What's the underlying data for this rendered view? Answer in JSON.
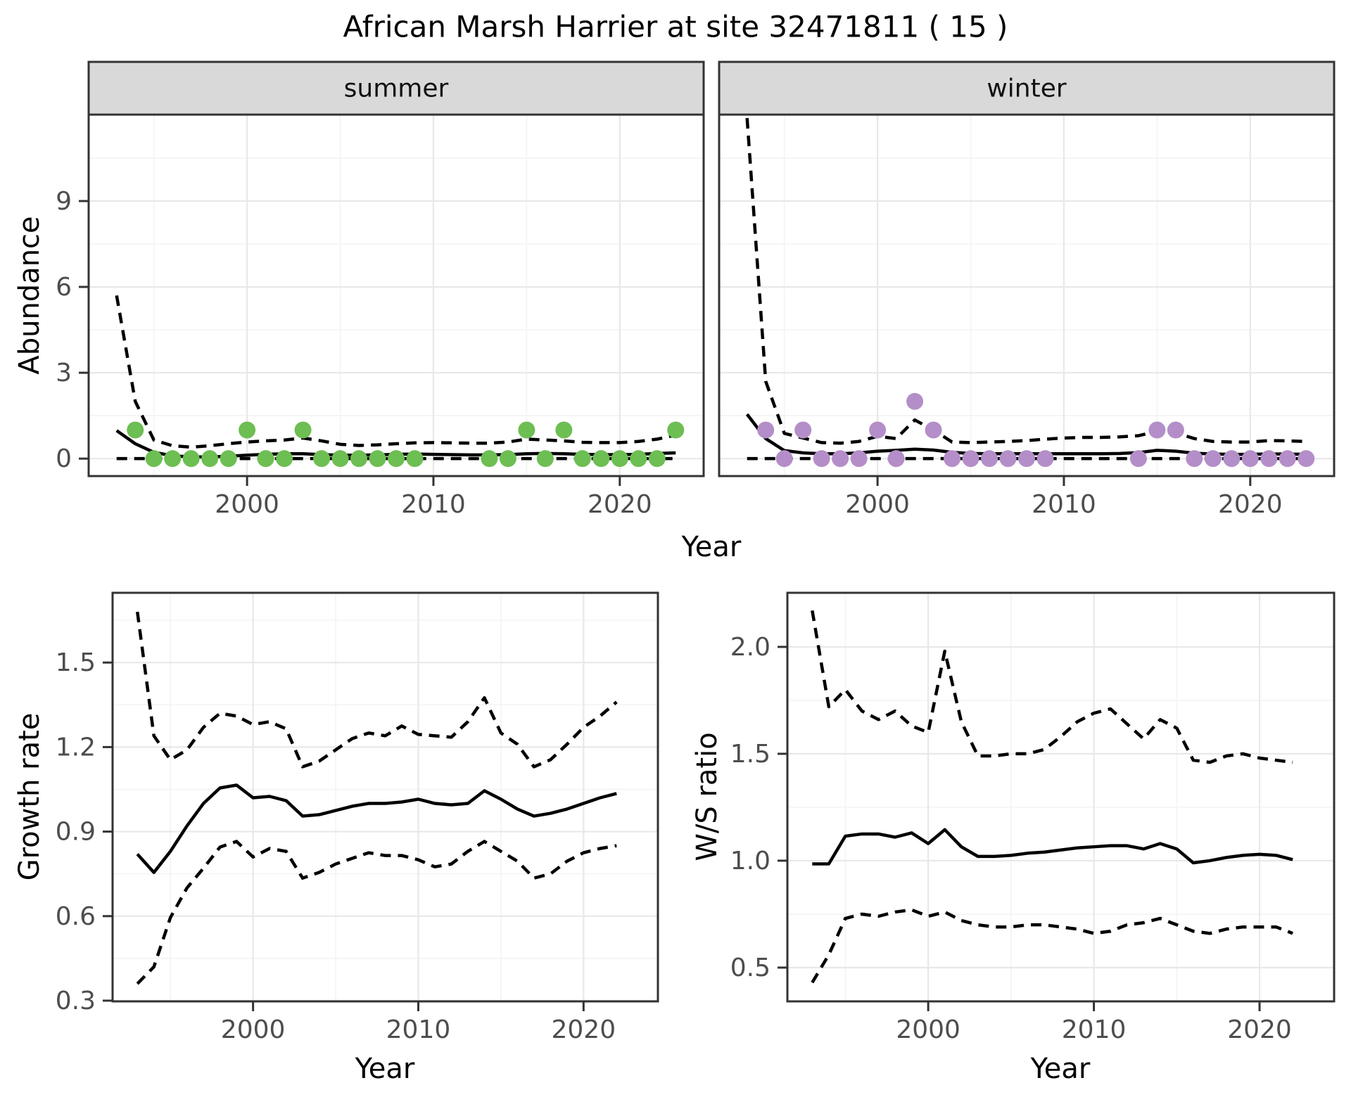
{
  "title": "African Marsh Harrier at site 32471811 ( 15 )",
  "axes": {
    "abundance": "Abundance",
    "growth_rate": "Growth rate",
    "ws_ratio": "W/S ratio",
    "year": "Year"
  },
  "colors": {
    "summer_point": "#6DBE53",
    "winter_point": "#B48EC8",
    "line": "#000000",
    "grid_major": "#E8E8E8",
    "grid_minor": "#F4F4F4",
    "strip_fill": "#D9D9D9",
    "panel_border": "#333333",
    "tick_text": "#4D4D4D"
  },
  "chart_data": [
    {
      "type": "scatter",
      "facet": "summer",
      "xlabel": "Year",
      "ylabel": "Abundance",
      "xlim": [
        1991.5,
        2024.5
      ],
      "ylim": [
        -0.61,
        12.02
      ],
      "x_ticks": [
        2000,
        2010,
        2020
      ],
      "x_tick_labels": [
        "2000",
        "2010",
        "2020"
      ],
      "x_minor": [
        1995,
        2005,
        2015
      ],
      "y_ticks": [
        0,
        3,
        6,
        9
      ],
      "y_tick_labels": [
        "0",
        "3",
        "6",
        "9"
      ],
      "y_minor": [
        1.5,
        4.5,
        7.5,
        10.5
      ],
      "points": {
        "years": [
          1994,
          1995,
          1996,
          1997,
          1998,
          1999,
          2000,
          2001,
          2002,
          2003,
          2004,
          2005,
          2006,
          2007,
          2008,
          2009,
          2013,
          2014,
          2015,
          2016,
          2017,
          2018,
          2019,
          2020,
          2021,
          2022,
          2023
        ],
        "values": [
          1,
          0,
          0,
          0,
          0,
          0,
          1,
          0,
          0,
          1,
          0,
          0,
          0,
          0,
          0,
          0,
          0,
          0,
          1,
          0,
          1,
          0,
          0,
          0,
          0,
          0,
          1
        ]
      },
      "mean": {
        "years": [
          1993,
          1994,
          1995,
          1996,
          1997,
          1998,
          1999,
          2000,
          2001,
          2002,
          2003,
          2004,
          2005,
          2006,
          2007,
          2008,
          2009,
          2010,
          2011,
          2012,
          2013,
          2014,
          2015,
          2016,
          2017,
          2018,
          2019,
          2020,
          2021,
          2022,
          2023
        ],
        "values": [
          0.98,
          0.52,
          0.22,
          0.1,
          0.06,
          0.06,
          0.08,
          0.12,
          0.15,
          0.17,
          0.17,
          0.14,
          0.12,
          0.12,
          0.13,
          0.15,
          0.16,
          0.15,
          0.14,
          0.13,
          0.13,
          0.14,
          0.17,
          0.18,
          0.17,
          0.15,
          0.14,
          0.14,
          0.15,
          0.18,
          0.2
        ]
      },
      "ci_upper": {
        "years": [
          1993,
          1994,
          1995,
          1996,
          1997,
          1998,
          1999,
          2000,
          2001,
          2002,
          2003,
          2004,
          2005,
          2006,
          2007,
          2008,
          2009,
          2010,
          2011,
          2012,
          2013,
          2014,
          2015,
          2016,
          2017,
          2018,
          2019,
          2020,
          2021,
          2022,
          2023
        ],
        "values": [
          5.7,
          2.0,
          0.65,
          0.45,
          0.4,
          0.45,
          0.52,
          0.58,
          0.62,
          0.65,
          0.72,
          0.62,
          0.5,
          0.46,
          0.48,
          0.52,
          0.55,
          0.56,
          0.55,
          0.54,
          0.54,
          0.58,
          0.68,
          0.65,
          0.62,
          0.57,
          0.56,
          0.56,
          0.6,
          0.68,
          0.82
        ]
      },
      "ci_lower": {
        "years": [
          1993,
          2023
        ],
        "values": [
          0,
          0
        ]
      }
    },
    {
      "type": "scatter",
      "facet": "winter",
      "xlabel": "Year",
      "ylabel": "Abundance",
      "xlim": [
        1991.5,
        2024.5
      ],
      "ylim": [
        -0.61,
        12.02
      ],
      "x_ticks": [
        2000,
        2010,
        2020
      ],
      "x_tick_labels": [
        "2000",
        "2010",
        "2020"
      ],
      "x_minor": [
        1995,
        2005,
        2015
      ],
      "y_ticks": [
        0,
        3,
        6,
        9
      ],
      "y_tick_labels": [
        "0",
        "3",
        "6",
        "9"
      ],
      "y_minor": [
        1.5,
        4.5,
        7.5,
        10.5
      ],
      "points": {
        "years": [
          1994,
          1995,
          1996,
          1997,
          1998,
          1999,
          2000,
          2001,
          2002,
          2003,
          2004,
          2005,
          2006,
          2007,
          2008,
          2009,
          2014,
          2015,
          2016,
          2017,
          2018,
          2019,
          2020,
          2021,
          2022,
          2023
        ],
        "values": [
          1,
          0,
          1,
          0,
          0,
          0,
          1,
          0,
          2,
          1,
          0,
          0,
          0,
          0,
          0,
          0,
          0,
          1,
          1,
          0,
          0,
          0,
          0,
          0,
          0,
          0
        ]
      },
      "mean": {
        "years": [
          1993,
          1994,
          1995,
          1996,
          1997,
          1998,
          1999,
          2000,
          2001,
          2002,
          2003,
          2004,
          2005,
          2006,
          2007,
          2008,
          2009,
          2010,
          2011,
          2012,
          2013,
          2014,
          2015,
          2016,
          2017,
          2018,
          2019,
          2020,
          2021,
          2022,
          2023
        ],
        "values": [
          1.55,
          0.7,
          0.28,
          0.2,
          0.17,
          0.17,
          0.2,
          0.26,
          0.29,
          0.33,
          0.3,
          0.22,
          0.18,
          0.17,
          0.17,
          0.17,
          0.17,
          0.17,
          0.17,
          0.17,
          0.18,
          0.21,
          0.29,
          0.26,
          0.19,
          0.16,
          0.15,
          0.15,
          0.16,
          0.16,
          0.15
        ]
      },
      "ci_upper": {
        "years": [
          1993,
          1994,
          1995,
          1996,
          1997,
          1998,
          1999,
          2000,
          2001,
          2002,
          2003,
          2004,
          2005,
          2006,
          2007,
          2008,
          2009,
          2010,
          2011,
          2012,
          2013,
          2014,
          2015,
          2016,
          2017,
          2018,
          2019,
          2020,
          2021,
          2022,
          2023
        ],
        "values": [
          11.9,
          2.7,
          0.88,
          0.72,
          0.56,
          0.54,
          0.6,
          0.78,
          0.7,
          1.35,
          1.0,
          0.58,
          0.56,
          0.58,
          0.6,
          0.63,
          0.68,
          0.72,
          0.74,
          0.74,
          0.76,
          0.8,
          0.95,
          0.9,
          0.7,
          0.6,
          0.58,
          0.58,
          0.63,
          0.62,
          0.6
        ]
      },
      "ci_lower": {
        "years": [
          1993,
          2023
        ],
        "values": [
          0,
          0
        ]
      }
    },
    {
      "type": "line",
      "facet": null,
      "xlabel": "Year",
      "ylabel": "Growth rate",
      "xlim": [
        1991.5,
        2024.5
      ],
      "ylim": [
        0.2975,
        1.7475
      ],
      "x_ticks": [
        2000,
        2010,
        2020
      ],
      "x_tick_labels": [
        "2000",
        "2010",
        "2020"
      ],
      "x_minor": [
        1995,
        2005,
        2015
      ],
      "y_ticks": [
        0.3,
        0.6,
        0.9,
        1.2,
        1.5
      ],
      "y_tick_labels": [
        "0.3",
        "0.6",
        "0.9",
        "1.2",
        "1.5"
      ],
      "y_minor": [
        0.45,
        0.75,
        1.05,
        1.35,
        1.65
      ],
      "points": {
        "years": [],
        "values": []
      },
      "mean": {
        "years": [
          1993,
          1994,
          1995,
          1996,
          1997,
          1998,
          1999,
          2000,
          2001,
          2002,
          2003,
          2004,
          2005,
          2006,
          2007,
          2008,
          2009,
          2010,
          2011,
          2012,
          2013,
          2014,
          2015,
          2016,
          2017,
          2018,
          2019,
          2020,
          2021,
          2022
        ],
        "values": [
          0.82,
          0.755,
          0.83,
          0.92,
          1.0,
          1.055,
          1.065,
          1.02,
          1.025,
          1.01,
          0.955,
          0.96,
          0.975,
          0.99,
          1.0,
          1.0,
          1.005,
          1.015,
          1.0,
          0.995,
          1.0,
          1.045,
          1.015,
          0.98,
          0.955,
          0.965,
          0.98,
          1.0,
          1.02,
          1.035
        ]
      },
      "ci_upper": {
        "years": [
          1993,
          1994,
          1995,
          1996,
          1997,
          1998,
          1999,
          2000,
          2001,
          2002,
          2003,
          2004,
          2005,
          2006,
          2007,
          2008,
          2009,
          2010,
          2011,
          2012,
          2013,
          2014,
          2015,
          2016,
          2017,
          2018,
          2019,
          2020,
          2021,
          2022
        ],
        "values": [
          1.68,
          1.24,
          1.155,
          1.19,
          1.27,
          1.32,
          1.31,
          1.28,
          1.29,
          1.265,
          1.13,
          1.15,
          1.19,
          1.23,
          1.25,
          1.24,
          1.275,
          1.245,
          1.24,
          1.235,
          1.29,
          1.375,
          1.25,
          1.21,
          1.13,
          1.155,
          1.21,
          1.27,
          1.31,
          1.36
        ]
      },
      "ci_lower": {
        "years": [
          1993,
          1994,
          1995,
          1996,
          1997,
          1998,
          1999,
          2000,
          2001,
          2002,
          2003,
          2004,
          2005,
          2006,
          2007,
          2008,
          2009,
          2010,
          2011,
          2012,
          2013,
          2014,
          2015,
          2016,
          2017,
          2018,
          2019,
          2020,
          2021,
          2022
        ],
        "values": [
          0.36,
          0.42,
          0.595,
          0.7,
          0.77,
          0.845,
          0.865,
          0.81,
          0.84,
          0.83,
          0.735,
          0.755,
          0.785,
          0.805,
          0.825,
          0.815,
          0.815,
          0.8,
          0.775,
          0.785,
          0.83,
          0.865,
          0.83,
          0.795,
          0.735,
          0.75,
          0.795,
          0.825,
          0.84,
          0.85
        ]
      }
    },
    {
      "type": "line",
      "facet": null,
      "xlabel": "Year",
      "ylabel": "W/S ratio",
      "xlim": [
        1991.5,
        2024.5
      ],
      "ylim": [
        0.342,
        2.253
      ],
      "x_ticks": [
        2000,
        2010,
        2020
      ],
      "x_tick_labels": [
        "2000",
        "2010",
        "2020"
      ],
      "x_minor": [
        1995,
        2005,
        2015
      ],
      "y_ticks": [
        0.5,
        1.0,
        1.5,
        2.0
      ],
      "y_tick_labels": [
        "0.5",
        "1.0",
        "1.5",
        "2.0"
      ],
      "y_minor": [
        0.75,
        1.25,
        1.75
      ],
      "points": {
        "years": [],
        "values": []
      },
      "mean": {
        "years": [
          1993,
          1994,
          1995,
          1996,
          1997,
          1998,
          1999,
          2000,
          2001,
          2002,
          2003,
          2004,
          2005,
          2006,
          2007,
          2008,
          2009,
          2010,
          2011,
          2012,
          2013,
          2014,
          2015,
          2016,
          2017,
          2018,
          2019,
          2020,
          2021,
          2022
        ],
        "values": [
          0.985,
          0.985,
          1.115,
          1.125,
          1.125,
          1.11,
          1.13,
          1.08,
          1.145,
          1.065,
          1.02,
          1.02,
          1.025,
          1.035,
          1.04,
          1.05,
          1.06,
          1.065,
          1.07,
          1.07,
          1.055,
          1.08,
          1.055,
          0.99,
          1.0,
          1.015,
          1.025,
          1.03,
          1.025,
          1.005
        ]
      },
      "ci_upper": {
        "years": [
          1993,
          1994,
          1995,
          1996,
          1997,
          1998,
          1999,
          2000,
          2001,
          2002,
          2003,
          2004,
          2005,
          2006,
          2007,
          2008,
          2009,
          2010,
          2011,
          2012,
          2013,
          2014,
          2015,
          2016,
          2017,
          2018,
          2019,
          2020,
          2021,
          2022
        ],
        "values": [
          2.17,
          1.72,
          1.8,
          1.7,
          1.66,
          1.7,
          1.63,
          1.6,
          1.98,
          1.65,
          1.49,
          1.49,
          1.5,
          1.5,
          1.52,
          1.58,
          1.65,
          1.69,
          1.71,
          1.64,
          1.57,
          1.66,
          1.62,
          1.47,
          1.46,
          1.49,
          1.5,
          1.48,
          1.47,
          1.46
        ]
      },
      "ci_lower": {
        "years": [
          1993,
          1994,
          1995,
          1996,
          1997,
          1998,
          1999,
          2000,
          2001,
          2002,
          2003,
          2004,
          2005,
          2006,
          2007,
          2008,
          2009,
          2010,
          2011,
          2012,
          2013,
          2014,
          2015,
          2016,
          2017,
          2018,
          2019,
          2020,
          2021,
          2022
        ],
        "values": [
          0.43,
          0.56,
          0.73,
          0.75,
          0.74,
          0.76,
          0.77,
          0.74,
          0.76,
          0.72,
          0.7,
          0.69,
          0.69,
          0.7,
          0.7,
          0.69,
          0.68,
          0.66,
          0.67,
          0.7,
          0.71,
          0.73,
          0.7,
          0.67,
          0.66,
          0.68,
          0.69,
          0.69,
          0.69,
          0.66
        ]
      }
    }
  ]
}
